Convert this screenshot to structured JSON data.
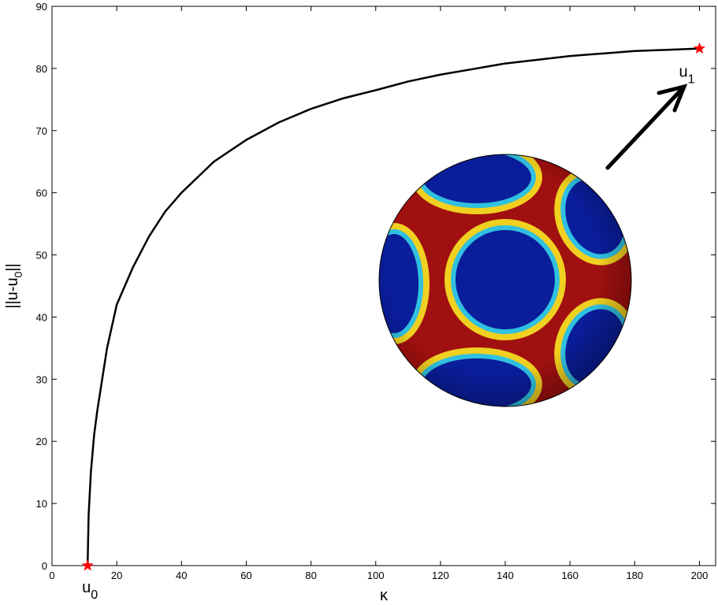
{
  "chart_data": {
    "type": "line",
    "x_label": "κ",
    "y_label": {
      "main": "||u-u",
      "sub": "0",
      "end": "||"
    },
    "x": [
      11,
      11.3,
      12,
      13,
      14,
      15.5,
      17,
      20,
      25,
      30,
      35,
      40,
      50,
      60,
      70,
      80,
      90,
      100,
      110,
      120,
      130,
      140,
      150,
      160,
      170,
      180,
      190,
      200
    ],
    "series": [
      {
        "name": "||u-u0||",
        "color": "#000000",
        "values": [
          0,
          8,
          15,
          21,
          25,
          30,
          35,
          42,
          48,
          53,
          57,
          60,
          65,
          68.5,
          71.3,
          73.5,
          75.2,
          76.5,
          77.9,
          79,
          79.9,
          80.8,
          81.4,
          82,
          82.4,
          82.8,
          83,
          83.2
        ]
      }
    ],
    "markers": {
      "x": [
        11,
        200
      ],
      "y": [
        0,
        83.2
      ],
      "color": "#ff0000",
      "labels": [
        {
          "text": "u",
          "sub": "0"
        },
        {
          "text": "u",
          "sub": "1"
        }
      ]
    },
    "xlim": [
      0,
      205
    ],
    "xticks": [
      0,
      20,
      40,
      60,
      80,
      100,
      120,
      140,
      160,
      180,
      200
    ],
    "ylim": [
      0,
      90
    ],
    "yticks": [
      0,
      10,
      20,
      30,
      40,
      50,
      60,
      70,
      80,
      90
    ]
  }
}
